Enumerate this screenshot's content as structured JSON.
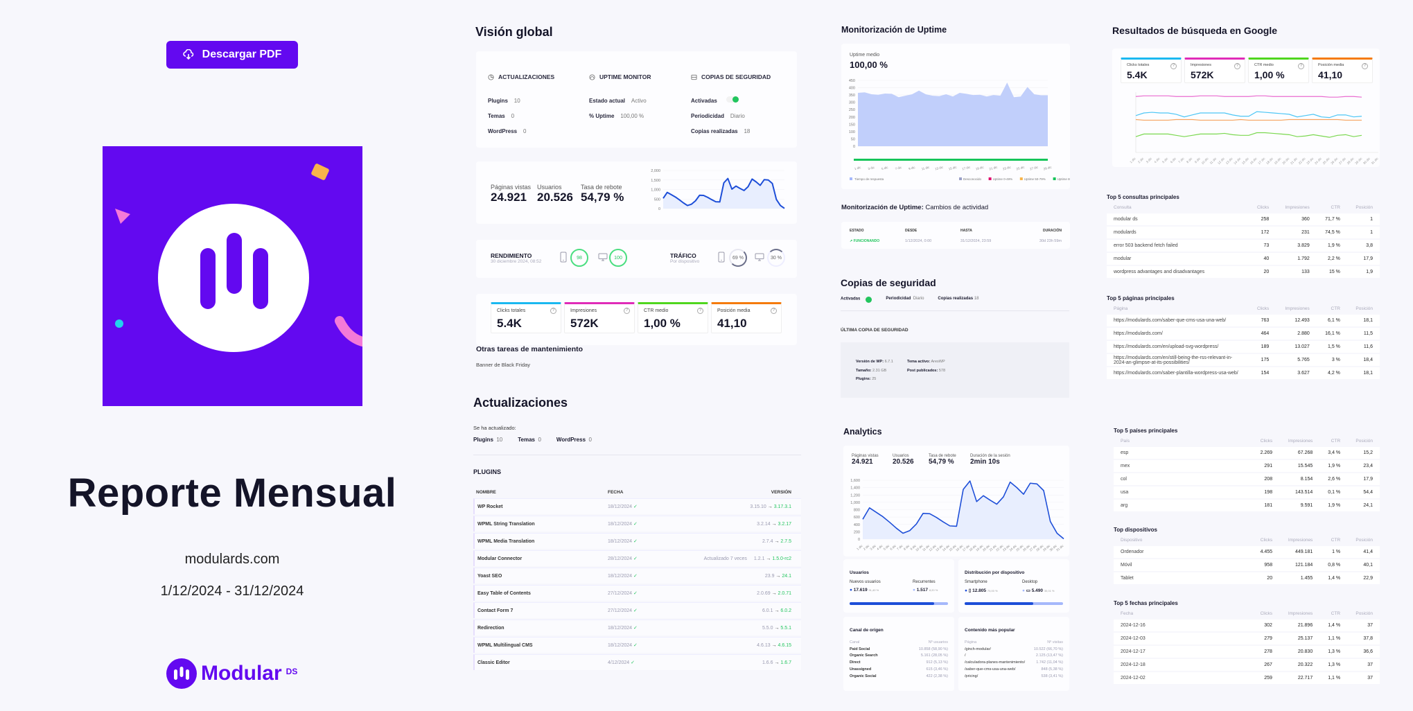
{
  "cover": {
    "download_label": "Descargar PDF",
    "title": "Reporte Mensual",
    "domain": "modulards.com",
    "dates": "1/12/2024 - 31/12/2024",
    "brand_name": "Modular",
    "brand_suffix": "DS",
    "brand_color": "#6309f0"
  },
  "overview": {
    "title": "Visión global",
    "updates": {
      "heading": "ACTUALIZACIONES",
      "rows": [
        {
          "label": "Plugins",
          "value": "10"
        },
        {
          "label": "Temas",
          "value": "0"
        },
        {
          "label": "WordPress",
          "value": "0"
        }
      ]
    },
    "uptime": {
      "heading": "UPTIME MONITOR",
      "rows": [
        {
          "label": "Estado actual",
          "value": "Activo"
        },
        {
          "label": "% Uptime",
          "value": "100,00 %"
        }
      ]
    },
    "backups": {
      "heading": "COPIAS DE SEGURIDAD",
      "activated_label": "Activadas",
      "rows": [
        {
          "label": "Periodicidad",
          "value": "Diario"
        },
        {
          "label": "Copias realizadas",
          "value": "18"
        }
      ]
    },
    "analytics": {
      "kpis": [
        {
          "label": "Páginas vistas",
          "value": "24.921"
        },
        {
          "label": "Usuarios",
          "value": "20.526"
        },
        {
          "label": "Tasa de rebote",
          "value": "54,79 %"
        }
      ],
      "yticks": [
        "2,000",
        "1,500",
        "1,000",
        "500",
        "0"
      ]
    },
    "performance": {
      "title": "RENDIMIENTO",
      "date": "30 diciembre 2024, 08:52",
      "mobile_score": "98",
      "desktop_score": "100"
    },
    "traffic": {
      "title": "TRÁFICO",
      "subtitle": "Por dispositivo",
      "mobile_pct": "69 %",
      "desktop_pct": "30 %"
    },
    "gsc": [
      {
        "label": "Clicks totales",
        "value": "5.4K",
        "color": "#1ab8f0"
      },
      {
        "label": "Impresiones",
        "value": "572K",
        "color": "#e02bb8"
      },
      {
        "label": "CTR medio",
        "value": "1,00 %",
        "color": "#4fd61e"
      },
      {
        "label": "Posición media",
        "value": "41,10",
        "color": "#f57a0a"
      }
    ],
    "other_tasks_title": "Otras tareas de mantenimiento",
    "other_tasks": [
      "Banner de Black Friday"
    ]
  },
  "updates": {
    "title": "Actualizaciones",
    "intro": "Se ha actualizado:",
    "summary": [
      {
        "label": "Plugins",
        "value": "10"
      },
      {
        "label": "Temas",
        "value": "0"
      },
      {
        "label": "WordPress",
        "value": "0"
      }
    ],
    "plugins_heading": "PLUGINS",
    "columns": [
      "NOMBRE",
      "FECHA",
      "VERSIÓN"
    ],
    "plugins": [
      {
        "name": "WP Rocket",
        "date": "18/12/2024",
        "note": "",
        "from": "3.15.10",
        "to": "3.17.3.1"
      },
      {
        "name": "WPML String Translation",
        "date": "18/12/2024",
        "note": "",
        "from": "3.2.14",
        "to": "3.2.17"
      },
      {
        "name": "WPML Media Translation",
        "date": "18/12/2024",
        "note": "",
        "from": "2.7.4",
        "to": "2.7.5"
      },
      {
        "name": "Modular Connector",
        "date": "28/12/2024",
        "note": "Actualizado 7 veces",
        "from": "1.2.1",
        "to": "1.5.0-rc2"
      },
      {
        "name": "Yoast SEO",
        "date": "18/12/2024",
        "note": "",
        "from": "23.9",
        "to": "24.1"
      },
      {
        "name": "Easy Table of Contents",
        "date": "27/12/2024",
        "note": "",
        "from": "2.0.69",
        "to": "2.0.71"
      },
      {
        "name": "Contact Form 7",
        "date": "27/12/2024",
        "note": "",
        "from": "6.0.1",
        "to": "6.0.2"
      },
      {
        "name": "Redirection",
        "date": "18/12/2024",
        "note": "",
        "from": "5.5.0",
        "to": "5.5.1"
      },
      {
        "name": "WPML Multilingual CMS",
        "date": "18/12/2024",
        "note": "",
        "from": "4.6.13",
        "to": "4.6.15"
      },
      {
        "name": "Classic Editor",
        "date": "4/12/2024",
        "note": "",
        "from": "1.6.6",
        "to": "1.6.7"
      }
    ]
  },
  "uptime": {
    "title": "Monitorización de Uptime",
    "avg_label": "Uptime medio",
    "avg_value": "100,00 %",
    "yticks": [
      "450",
      "400",
      "350",
      "300",
      "250",
      "200",
      "150",
      "100",
      "50",
      "0"
    ],
    "xticks": [
      "1 dic",
      "3 dic",
      "5 dic",
      "7 dic",
      "9 dic",
      "11 dic",
      "13 dic",
      "15 dic",
      "17 dic",
      "19 dic",
      "21 dic",
      "23 dic",
      "25 dic",
      "27 dic",
      "29 dic"
    ],
    "legend_left": "Tiempo de respuesta",
    "legend_right": [
      {
        "label": "Desconocido",
        "color": "#9aa0c8"
      },
      {
        "label": "Uptime 0-49%",
        "color": "#e0106e"
      },
      {
        "label": "Uptime 50-79%",
        "color": "#f8b44a"
      },
      {
        "label": "Uptime 80-100%",
        "color": "#16c45a"
      }
    ],
    "changes_title_bold": "Monitorización de Uptime:",
    "changes_title_rest": "Cambios de actividad",
    "changes_columns": [
      "ESTADO",
      "DESDE",
      "HASTA",
      "DURACIÓN"
    ],
    "changes": [
      {
        "status": "FUNCIONANDO",
        "from": "1/12/2024, 0:00",
        "to": "31/12/2024, 23:59",
        "duration": "30d 23h 59m"
      }
    ]
  },
  "backups": {
    "title": "Copias de seguridad",
    "activated_label": "Activadas",
    "periodicity_label": "Periodicidad",
    "periodicity_value": "Diario",
    "count_label": "Copias realizadas",
    "count_value": "18",
    "last_heading": "ÚLTIMA COPIA DE SEGURIDAD",
    "last": [
      {
        "label": "Versión de WP:",
        "value": "6.7.1"
      },
      {
        "label": "Tema activo:",
        "value": "AresWP"
      },
      {
        "label": "Tamaño:",
        "value": "2.31 GB"
      },
      {
        "label": "Post publicados:",
        "value": "578"
      },
      {
        "label": "Plugins:",
        "value": "25"
      }
    ]
  },
  "analytics": {
    "title": "Analytics",
    "kpis": [
      {
        "label": "Páginas vistas",
        "value": "24.921"
      },
      {
        "label": "Usuarios",
        "value": "20.526"
      },
      {
        "label": "Tasa de rebote",
        "value": "54,79 %"
      },
      {
        "label": "Duración de la sesión",
        "value": "2min 10s"
      }
    ],
    "yticks": [
      "1,600",
      "1,400",
      "1,200",
      "1,000",
      "800",
      "600",
      "400",
      "200",
      "0"
    ],
    "users": {
      "title": "Usuarios",
      "new_label": "Nuevos usuarios",
      "new_value": "17.619",
      "new_pct": "91,40 %",
      "returning_label": "Recurrentes",
      "returning_value": "1.517",
      "returning_pct": "8,20 %"
    },
    "devices": {
      "title": "Distribución por dispositivo",
      "smartphone_label": "Smartphone",
      "smartphone_value": "12.805",
      "smartphone_pct": "70,00 %",
      "desktop_label": "Desktop",
      "desktop_value": "5.490",
      "desktop_pct": "30,01 %"
    },
    "channels": {
      "title": "Canal de origen",
      "columns": [
        "Canal",
        "Nº usuarios"
      ],
      "rows": [
        {
          "name": "Paid Social",
          "value": "10.858 (58,90 %)"
        },
        {
          "name": "Organic Search",
          "value": "5.161 (28,05 %)"
        },
        {
          "name": "Direct",
          "value": "912 (5,13 %)"
        },
        {
          "name": "Unassigned",
          "value": "615 (3,46 %)"
        },
        {
          "name": "Organic Social",
          "value": "422 (2,38 %)"
        }
      ]
    },
    "popular": {
      "title": "Contenido más popular",
      "columns": [
        "Página",
        "Nº visitas"
      ],
      "rows": [
        {
          "name": "/ginch-modular/",
          "value": "10.522 (66,70 %)"
        },
        {
          "name": "/",
          "value": "2.125 (13,47 %)"
        },
        {
          "name": "/calculadora-planes-mantenimiento/",
          "value": "1.742 (11,04 %)"
        },
        {
          "name": "/saber-que-cms-usa-una-web/",
          "value": "848 (5,38 %)"
        },
        {
          "name": "/pricing/",
          "value": "538 (3,41 %)"
        }
      ]
    }
  },
  "google": {
    "title": "Resultados de búsqueda en Google",
    "xticks": [
      "1 dic",
      "2 dic",
      "3 dic",
      "4 dic",
      "5 dic",
      "6 dic",
      "7 dic",
      "8 dic",
      "9 dic",
      "10 dic",
      "11 dic",
      "12 dic",
      "13 dic",
      "14 dic",
      "15 dic",
      "16 dic",
      "17 dic",
      "18 dic",
      "19 dic",
      "20 dic",
      "21 dic",
      "22 dic",
      "23 dic",
      "24 dic",
      "25 dic",
      "26 dic",
      "27 dic",
      "28 dic",
      "29 dic",
      "30 dic",
      "31 dic"
    ],
    "queries": {
      "title": "Top 5 consultas principales",
      "columns": [
        "Consulta",
        "Clicks",
        "Impresiones",
        "CTR",
        "Posición"
      ],
      "rows": [
        [
          "modular ds",
          "258",
          "360",
          "71,7 %",
          "1"
        ],
        [
          "modulards",
          "172",
          "231",
          "74,5 %",
          "1"
        ],
        [
          "error 503 backend fetch failed",
          "73",
          "3.829",
          "1,9 %",
          "3,8"
        ],
        [
          "modular",
          "40",
          "1.792",
          "2,2 %",
          "17,9"
        ],
        [
          "wordpress advantages and disadvantages",
          "20",
          "133",
          "15 %",
          "1,9"
        ]
      ]
    },
    "pages": {
      "title": "Top 5 páginas principales",
      "columns": [
        "Página",
        "Clicks",
        "Impresiones",
        "CTR",
        "Posición"
      ],
      "rows": [
        [
          "https://modulards.com/saber-que-cms-usa-una-web/",
          "763",
          "12.493",
          "6,1 %",
          "18,1"
        ],
        [
          "https://modulards.com/",
          "464",
          "2.880",
          "16,1 %",
          "11,5"
        ],
        [
          "https://modulards.com/en/upload-svg-wordpress/",
          "189",
          "13.027",
          "1,5 %",
          "11,6"
        ],
        [
          "https://modulards.com/en/still-being-the-rss-relevant-in-2024-an-glimpse-at-its-possibilities/",
          "175",
          "5.765",
          "3 %",
          "18,4"
        ],
        [
          "https://modulards.com/saber-plantilla-wordpress-usa-web/",
          "154",
          "3.627",
          "4,2 %",
          "18,1"
        ]
      ]
    },
    "countries": {
      "title": "Top 5 países principales",
      "columns": [
        "País",
        "Clicks",
        "Impresiones",
        "CTR",
        "Posición"
      ],
      "rows": [
        [
          "esp",
          "2.269",
          "67.268",
          "3,4 %",
          "15,2"
        ],
        [
          "mex",
          "291",
          "15.545",
          "1,9 %",
          "23,4"
        ],
        [
          "col",
          "208",
          "8.154",
          "2,6 %",
          "17,9"
        ],
        [
          "usa",
          "198",
          "143.514",
          "0,1 %",
          "54,4"
        ],
        [
          "arg",
          "181",
          "9.591",
          "1,9 %",
          "24,1"
        ]
      ]
    },
    "devices": {
      "title": "Top dispositivos",
      "columns": [
        "Dispositivo",
        "Clicks",
        "Impresiones",
        "CTR",
        "Posición"
      ],
      "rows": [
        [
          "Ordenador",
          "4.455",
          "449.181",
          "1 %",
          "41,4"
        ],
        [
          "Móvil",
          "958",
          "121.184",
          "0,8 %",
          "40,1"
        ],
        [
          "Tablet",
          "20",
          "1.455",
          "1,4 %",
          "22,9"
        ]
      ]
    },
    "dates": {
      "title": "Top 5 fechas principales",
      "columns": [
        "Fecha",
        "Clicks",
        "Impresiones",
        "CTR",
        "Posición"
      ],
      "rows": [
        [
          "2024-12-16",
          "302",
          "21.896",
          "1,4 %",
          "37"
        ],
        [
          "2024-12-03",
          "279",
          "25.137",
          "1,1 %",
          "37,8"
        ],
        [
          "2024-12-17",
          "278",
          "20.830",
          "1,3 %",
          "36,6"
        ],
        [
          "2024-12-18",
          "267",
          "20.322",
          "1,3 %",
          "37"
        ],
        [
          "2024-12-02",
          "259",
          "22.717",
          "1,1 %",
          "37"
        ]
      ]
    }
  },
  "chart_data": [
    {
      "type": "area",
      "title": "Páginas vistas (Visión global / Analytics)",
      "x": [
        "1 dic",
        "2 dic",
        "3 dic",
        "4 dic",
        "5 dic",
        "6 dic",
        "7 dic",
        "8 dic",
        "9 dic",
        "10 dic",
        "11 dic",
        "12 dic",
        "13 dic",
        "14 dic",
        "15 dic",
        "16 dic",
        "17 dic",
        "18 dic",
        "19 dic",
        "20 dic",
        "21 dic",
        "22 dic",
        "23 dic",
        "24 dic",
        "25 dic",
        "26 dic",
        "27 dic",
        "28 dic",
        "29 dic",
        "30 dic",
        "31 dic"
      ],
      "values": [
        540,
        850,
        730,
        610,
        460,
        300,
        160,
        230,
        410,
        700,
        690,
        590,
        470,
        360,
        350,
        1350,
        1580,
        1020,
        1180,
        1060,
        950,
        1150,
        1550,
        1400,
        1220,
        1520,
        1500,
        1320,
        480,
        160,
        10
      ],
      "ylim": [
        0,
        1600
      ],
      "color": "#1d4ed8"
    },
    {
      "type": "area",
      "title": "Tiempo de respuesta (Uptime)",
      "x": [
        "1 dic",
        "2 dic",
        "3 dic",
        "4 dic",
        "5 dic",
        "6 dic",
        "7 dic",
        "8 dic",
        "9 dic",
        "10 dic",
        "11 dic",
        "12 dic",
        "13 dic",
        "14 dic",
        "15 dic",
        "16 dic",
        "17 dic",
        "18 dic",
        "19 dic",
        "20 dic",
        "21 dic",
        "22 dic",
        "23 dic",
        "24 dic",
        "25 dic",
        "26 dic",
        "27 dic",
        "28 dic",
        "29 dic"
      ],
      "values": [
        365,
        368,
        355,
        352,
        360,
        358,
        335,
        345,
        355,
        380,
        355,
        345,
        342,
        355,
        340,
        365,
        358,
        350,
        352,
        340,
        350,
        345,
        435,
        335,
        340,
        405,
        355,
        348,
        348
      ],
      "ylim": [
        0,
        450
      ],
      "color": "#c1cffb"
    },
    {
      "type": "line",
      "title": "Google Search Console (normalizado)",
      "x_count": 29,
      "series": [
        {
          "name": "Impresiones",
          "color": "#e96bd0",
          "values": [
            85,
            86,
            86,
            86,
            86,
            85,
            85,
            85,
            86,
            86,
            86,
            85,
            85,
            85,
            85,
            86,
            86,
            85,
            85,
            85,
            85,
            85,
            85,
            85,
            84,
            84,
            85,
            85,
            84
          ]
        },
        {
          "name": "Clicks totales",
          "color": "#4cc6f5",
          "values": [
            56,
            60,
            61,
            60,
            60,
            58,
            54,
            57,
            60,
            60,
            60,
            60,
            57,
            55,
            55,
            62,
            61,
            60,
            59,
            58,
            54,
            56,
            58,
            54,
            53,
            57,
            57,
            54,
            55
          ]
        },
        {
          "name": "Posición media",
          "color": "#f6a460",
          "values": [
            50,
            49,
            49,
            49,
            49,
            50,
            50,
            50,
            49,
            49,
            49,
            49,
            49,
            50,
            49,
            49,
            49,
            49,
            49,
            50,
            50,
            50,
            50,
            50,
            50,
            50,
            49,
            49,
            49
          ]
        },
        {
          "name": "CTR medio",
          "color": "#7ad84f",
          "values": [
            24,
            28,
            28,
            28,
            28,
            26,
            24,
            26,
            28,
            28,
            28,
            29,
            27,
            26,
            26,
            30,
            30,
            29,
            28,
            27,
            24,
            25,
            27,
            25,
            23,
            26,
            27,
            24,
            26
          ]
        }
      ]
    }
  ]
}
